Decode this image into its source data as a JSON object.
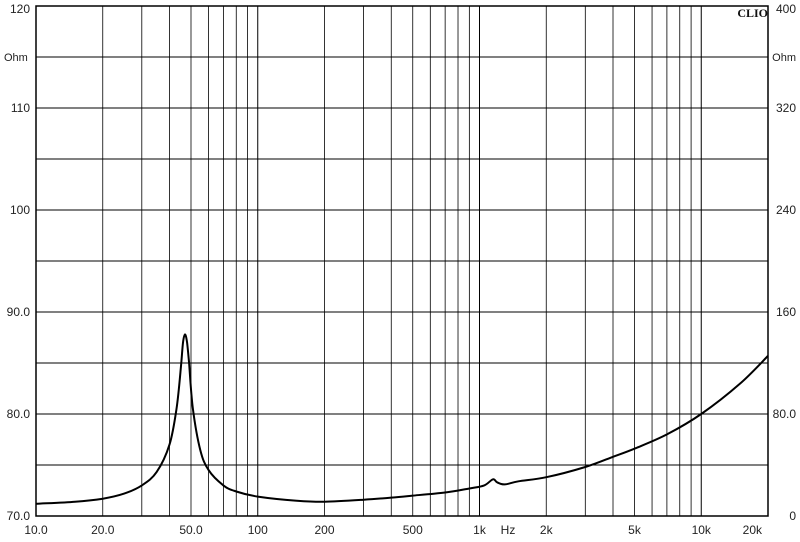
{
  "chart_data": {
    "type": "line",
    "brand": "CLIO",
    "left_unit": "Ohm",
    "right_unit": "Ohm",
    "x_unit": "Hz",
    "xscale": "log",
    "xlim": [
      10,
      20000
    ],
    "ylim": [
      70,
      120
    ],
    "ylim_right": [
      0,
      400
    ],
    "grid": true,
    "y_ticks_left": [
      {
        "value": 70,
        "label": "70.0"
      },
      {
        "value": 80,
        "label": "80.0"
      },
      {
        "value": 90,
        "label": "90.0"
      },
      {
        "value": 100,
        "label": "100"
      },
      {
        "value": 110,
        "label": "110"
      },
      {
        "value": 120,
        "label": "120"
      }
    ],
    "y_ticks_right": [
      {
        "value": 0,
        "label": "0"
      },
      {
        "value": 80,
        "label": "80.0"
      },
      {
        "value": 160,
        "label": "160"
      },
      {
        "value": 240,
        "label": "240"
      },
      {
        "value": 320,
        "label": "320"
      },
      {
        "value": 400,
        "label": "400"
      }
    ],
    "x_ticks": [
      {
        "value": 10,
        "label": "10.0"
      },
      {
        "value": 20,
        "label": "20.0"
      },
      {
        "value": 50,
        "label": "50.0"
      },
      {
        "value": 100,
        "label": "100"
      },
      {
        "value": 200,
        "label": "200"
      },
      {
        "value": 500,
        "label": "500"
      },
      {
        "value": 1000,
        "label": "1k"
      },
      {
        "value": 2000,
        "label": "2k"
      },
      {
        "value": 5000,
        "label": "5k"
      },
      {
        "value": 10000,
        "label": "10k"
      },
      {
        "value": 20000,
        "label": "20k"
      }
    ],
    "series": [
      {
        "color": "#000000",
        "points": [
          [
            10,
            71.2
          ],
          [
            15,
            71.4
          ],
          [
            20,
            71.7
          ],
          [
            25,
            72.2
          ],
          [
            30,
            73.0
          ],
          [
            35,
            74.3
          ],
          [
            40,
            77.0
          ],
          [
            43,
            80.5
          ],
          [
            45,
            84.5
          ],
          [
            46,
            87.0
          ],
          [
            47,
            87.8
          ],
          [
            48,
            87.0
          ],
          [
            49,
            85.0
          ],
          [
            51,
            80.5
          ],
          [
            55,
            76.5
          ],
          [
            60,
            74.5
          ],
          [
            70,
            73.0
          ],
          [
            80,
            72.4
          ],
          [
            100,
            71.9
          ],
          [
            150,
            71.5
          ],
          [
            200,
            71.4
          ],
          [
            300,
            71.6
          ],
          [
            400,
            71.8
          ],
          [
            500,
            72.0
          ],
          [
            700,
            72.3
          ],
          [
            900,
            72.7
          ],
          [
            1050,
            73.0
          ],
          [
            1150,
            73.6
          ],
          [
            1200,
            73.3
          ],
          [
            1300,
            73.1
          ],
          [
            1500,
            73.4
          ],
          [
            2000,
            73.8
          ],
          [
            3000,
            74.8
          ],
          [
            4000,
            75.8
          ],
          [
            5000,
            76.6
          ],
          [
            7000,
            78.0
          ],
          [
            10000,
            80.0
          ],
          [
            15000,
            83.0
          ],
          [
            20000,
            85.7
          ]
        ]
      }
    ]
  }
}
